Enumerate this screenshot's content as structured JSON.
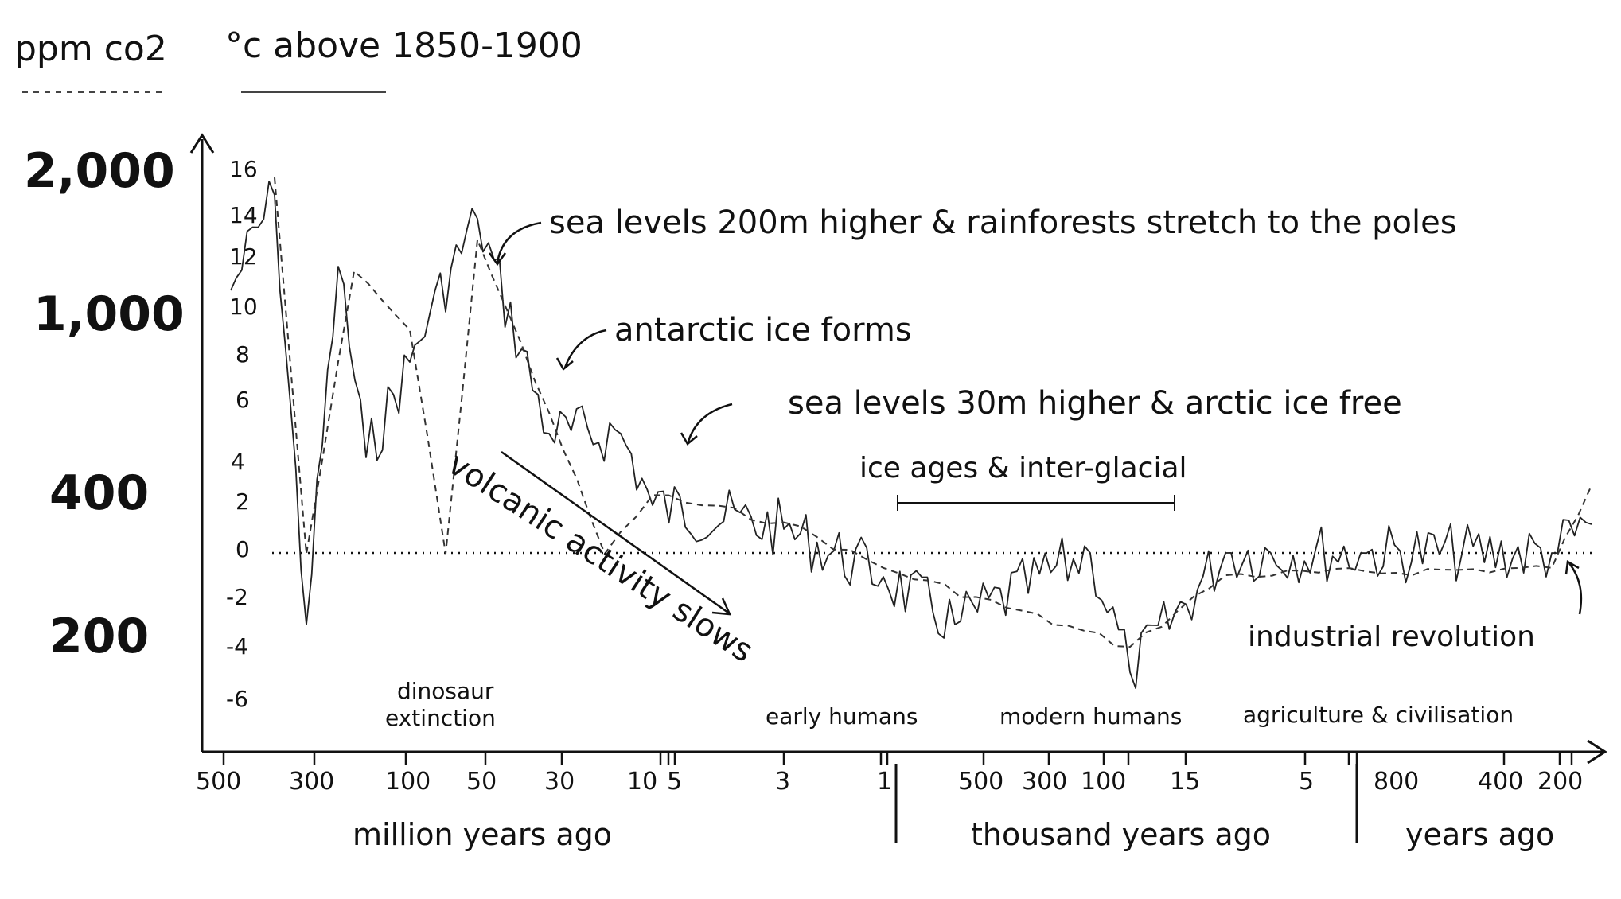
{
  "legend": {
    "co2_label": "ppm co2",
    "temp_label": "°c above 1850-1900"
  },
  "chart_data": {
    "type": "line",
    "left_axis": {
      "label": "ppm co2",
      "ticks": [
        "2,000",
        "1,000",
        "400",
        "200"
      ]
    },
    "temp_axis": {
      "label": "°c above 1850-1900",
      "ticks": [
        "16",
        "14",
        "12",
        "10",
        "8",
        "6",
        "4",
        "2",
        "0",
        "-2",
        "-4",
        "-6"
      ],
      "ylim": [
        -6,
        16
      ]
    },
    "x_axis": {
      "ticks": [
        "500",
        "300",
        "100",
        "50",
        "30",
        "10",
        "5",
        "3",
        "1",
        "500",
        "300",
        "100",
        "15",
        "5",
        "800",
        "400",
        "200"
      ],
      "segments": [
        "million years ago",
        "thousand years ago",
        "years ago"
      ]
    },
    "series": [
      {
        "name": "°c above 1850-1900",
        "style": "solid",
        "points": [
          [
            "500 mya",
            11
          ],
          [
            "450 mya",
            15
          ],
          [
            "300 mya",
            -3
          ],
          [
            "250 mya",
            12
          ],
          [
            "150 mya",
            4
          ],
          [
            "100 mya",
            8
          ],
          [
            "66 mya",
            10
          ],
          [
            "50 mya",
            14
          ],
          [
            "34 mya",
            5
          ],
          [
            "15 mya",
            5
          ],
          [
            "10 mya",
            2
          ],
          [
            "3 mya",
            1
          ],
          [
            "1 mya",
            -1
          ],
          [
            "500 kya",
            -3
          ],
          [
            "120 kya",
            0
          ],
          [
            "20 kya",
            -5
          ],
          [
            "10 kya",
            0
          ],
          [
            "800 ya",
            0
          ],
          [
            "200 ya",
            0
          ],
          [
            "0 ya",
            1.2
          ]
        ]
      },
      {
        "name": "ppm co2",
        "style": "dashed",
        "points": [
          [
            "450 mya",
            1900
          ],
          [
            "300 mya",
            300
          ],
          [
            "200 mya",
            1200
          ],
          [
            "100 mya",
            900
          ],
          [
            "70 mya",
            300
          ],
          [
            "50 mya",
            1400
          ],
          [
            "34 mya",
            600
          ],
          [
            "20 mya",
            300
          ],
          [
            "10 mya",
            400
          ],
          [
            "3 mya",
            350
          ],
          [
            "1 mya",
            280
          ],
          [
            "20 kya",
            190
          ],
          [
            "10 kya",
            270
          ],
          [
            "200 ya",
            280
          ],
          [
            "0 ya",
            420
          ]
        ]
      }
    ],
    "annotations": [
      "sea levels 200m higher & rainforests stretch to the poles",
      "antarctic ice forms",
      "sea levels 30m higher & arctic ice free",
      "ice ages & inter-glacial",
      "volcanic activity slows",
      "industrial revolution"
    ],
    "eras": [
      "dinosaur",
      "extinction",
      "early humans",
      "modern humans",
      "agriculture & civilisation"
    ]
  }
}
